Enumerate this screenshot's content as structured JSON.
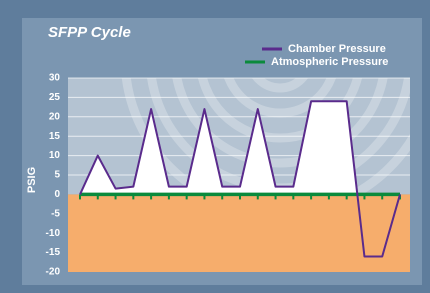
{
  "chart_data": {
    "type": "line",
    "title": "SFPP Cycle",
    "y_label": "PSIG",
    "categories": [
      null,
      null,
      null,
      null,
      null,
      null,
      null,
      null,
      null,
      null,
      null,
      null,
      null,
      null,
      null,
      null,
      null,
      null,
      null
    ],
    "series": [
      {
        "name": "Chamber Pressure",
        "color": "#5a2b8c",
        "values": [
          0,
          10,
          1.5,
          2,
          22,
          2,
          2,
          22,
          2,
          2,
          22,
          2,
          2,
          24,
          24,
          24,
          -16,
          -16,
          0
        ]
      },
      {
        "name": "Atmospheric Pressure",
        "color": "#0b8a3c",
        "values": [
          0,
          0,
          0,
          0,
          0,
          0,
          0,
          0,
          0,
          0,
          0,
          0,
          0,
          0,
          0,
          0,
          0,
          0,
          0
        ]
      }
    ],
    "ylim": [
      -20,
      30
    ],
    "yticks": [
      -20,
      -15,
      -10,
      -5,
      0,
      5,
      10,
      15,
      20,
      25,
      30
    ],
    "grid": true
  }
}
